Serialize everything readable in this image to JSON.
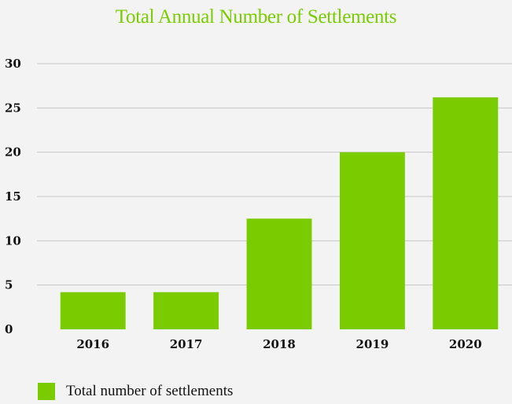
{
  "colors": {
    "accent": "#7acc00",
    "title": "#7acc00",
    "grid": "#c7c7c7",
    "background": "#f3f3f3"
  },
  "chart_data": {
    "type": "bar",
    "title": "Total Annual Number of Settlements",
    "xlabel": "",
    "ylabel": "",
    "categories": [
      "2016",
      "2017",
      "2018",
      "2019",
      "2020"
    ],
    "series": [
      {
        "name": "Total number of settlements",
        "values": [
          4.2,
          4.2,
          12.5,
          20,
          26.2
        ]
      }
    ],
    "ylim": [
      0,
      30
    ],
    "yticks": [
      0,
      5,
      10,
      15,
      20,
      25,
      30
    ],
    "grid": true,
    "legend": "bottom-left"
  }
}
